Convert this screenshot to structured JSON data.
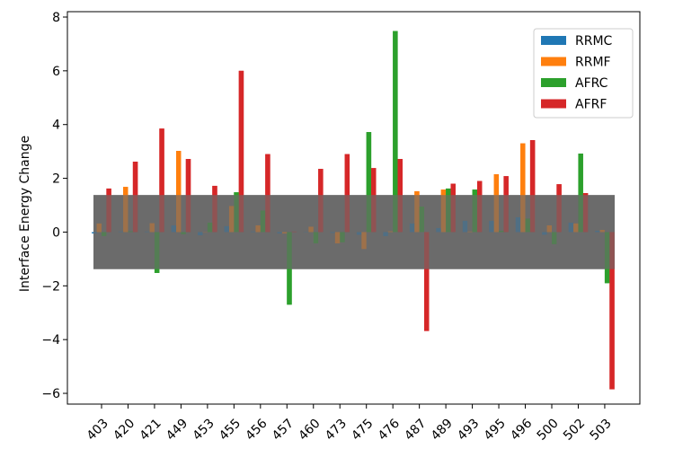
{
  "chart_data": {
    "type": "bar",
    "categories": [
      "403",
      "420",
      "421",
      "449",
      "453",
      "455",
      "456",
      "457",
      "460",
      "473",
      "475",
      "476",
      "487",
      "489",
      "493",
      "495",
      "496",
      "500",
      "502",
      "503"
    ],
    "series": [
      {
        "name": "RRMC",
        "color": "#1f77b4",
        "values": [
          -0.05,
          0.02,
          0.02,
          0.25,
          -0.12,
          0.22,
          0.02,
          -0.05,
          0.01,
          -0.03,
          -0.1,
          -0.15,
          0.32,
          0.15,
          0.42,
          0.42,
          0.55,
          -0.1,
          0.35,
          0.05
        ]
      },
      {
        "name": "RRMF",
        "color": "#ff7f0e",
        "values": [
          0.32,
          1.68,
          0.33,
          3.02,
          0.01,
          0.97,
          0.25,
          -0.05,
          0.2,
          -0.42,
          -0.63,
          0.03,
          1.52,
          1.58,
          0.02,
          2.15,
          3.3,
          0.25,
          0.32,
          0.08
        ]
      },
      {
        "name": "AFRC",
        "color": "#2ca02c",
        "values": [
          -0.15,
          0.03,
          -1.52,
          -0.08,
          0.35,
          1.48,
          0.8,
          -2.7,
          -0.42,
          -0.38,
          3.72,
          7.48,
          0.95,
          1.62,
          1.58,
          0.05,
          0.5,
          -0.45,
          2.92,
          -1.9
        ]
      },
      {
        "name": "AFRF",
        "color": "#d62728",
        "values": [
          1.62,
          2.62,
          3.85,
          2.72,
          1.72,
          6.0,
          2.9,
          0.02,
          2.35,
          2.9,
          2.38,
          2.72,
          -3.68,
          1.8,
          1.9,
          2.08,
          3.42,
          1.78,
          1.45,
          -5.85
        ]
      }
    ],
    "ylabel": "Interface Energy Change",
    "xlabel": "",
    "ylim": [
      -6.4,
      8.2
    ],
    "yticks": [
      "−6",
      "−4",
      "−2",
      "0",
      "2",
      "4",
      "6",
      "8"
    ],
    "ytick_values": [
      -6,
      -4,
      -2,
      0,
      2,
      4,
      6,
      8
    ],
    "band": {
      "low": -1.38,
      "high": 1.38,
      "color": "#6b6b6b"
    },
    "legend": {
      "position": "top-right"
    },
    "grid": false
  }
}
